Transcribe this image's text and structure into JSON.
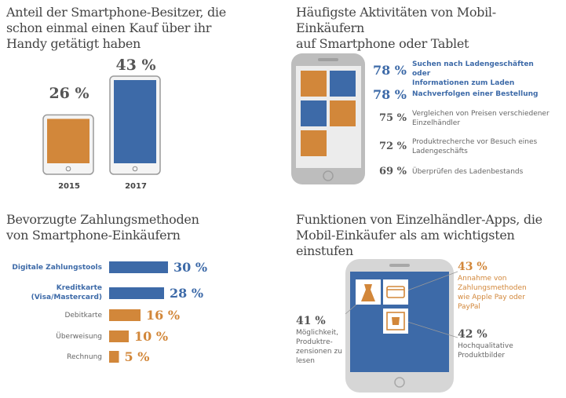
{
  "colors": {
    "blue": "#3d6aa8",
    "orange": "#d2873a",
    "device_frame": "#bdbdbd",
    "device_screen": "#ececec",
    "text_dark": "#444444",
    "text_gray": "#666666"
  },
  "chart_data": [
    {
      "type": "bar",
      "title": "Anteil der Smartphone-Besitzer, die schon einmal einen Kauf über ihr Handy getätigt haben",
      "categories": [
        "2015",
        "2017"
      ],
      "values": [
        26,
        43
      ],
      "value_labels": [
        "26 %",
        "43 %"
      ],
      "colors": [
        "#d2873a",
        "#3d6aa8"
      ],
      "ylim": [
        0,
        43
      ]
    },
    {
      "type": "table",
      "title": "Häufigste Aktivitäten von Mobil-Einkäufern auf Smartphone oder Tablet",
      "rows": [
        {
          "value": 78,
          "value_label": "78 %",
          "label": "Suchen nach Ladengeschäften oder Informationen zum Laden",
          "highlight": true
        },
        {
          "value": 78,
          "value_label": "78 %",
          "label": "Nachverfolgen einer Bestellung",
          "highlight": true
        },
        {
          "value": 75,
          "value_label": "75 %",
          "label": "Vergleichen von Preisen verschiedener Einzelhändler",
          "highlight": false
        },
        {
          "value": 72,
          "value_label": "72 %",
          "label": "Produktrecherche vor Besuch eines Ladengeschäfts",
          "highlight": false
        },
        {
          "value": 69,
          "value_label": "69 %",
          "label": "Überprüfen des Ladenbestands",
          "highlight": false
        }
      ],
      "tile_colors": [
        "#d2873a",
        "#3d6aa8",
        "#3d6aa8",
        "#d2873a",
        "#d2873a"
      ]
    },
    {
      "type": "bar",
      "orientation": "horizontal",
      "title": "Bevorzugte Zahlungsmethoden von Smartphone-Einkäufern",
      "categories": [
        "Digitale Zahlungstools",
        "Kreditkarte (Visa/Mastercard)",
        "Debitkarte",
        "Überweisung",
        "Rechnung"
      ],
      "category_lines": [
        [
          "Digitale Zahlungstools"
        ],
        [
          "Kreditkarte",
          "(Visa/Mastercard)"
        ],
        [
          "Debitkarte"
        ],
        [
          "Überweisung"
        ],
        [
          "Rechnung"
        ]
      ],
      "values": [
        30,
        28,
        16,
        10,
        5
      ],
      "value_labels": [
        "30 %",
        "28 %",
        "16 %",
        "10 %",
        "5 %"
      ],
      "colors": [
        "#3d6aa8",
        "#3d6aa8",
        "#d2873a",
        "#d2873a",
        "#d2873a"
      ],
      "ylim": [
        0,
        30
      ]
    },
    {
      "type": "table",
      "title": "Funktionen von Einzelhändler-Apps, die Mobil-Einkäufer als am wichtigsten einstufen",
      "rows": [
        {
          "value": 43,
          "value_label": "43 %",
          "label": "Annahme von Zahlungsmethoden wie Apple Pay oder PayPal",
          "icon": "credit-card-icon"
        },
        {
          "value": 41,
          "value_label": "41 %",
          "label": "Möglichkeit, Produktre-zensionen zu lesen",
          "icon": "dress-icon"
        },
        {
          "value": 42,
          "value_label": "42 %",
          "label": "Hochqualitative Produktbilder",
          "icon": "picture-frame-icon"
        }
      ]
    }
  ],
  "sections": {
    "ownership": {
      "title_lines": [
        "Anteil der Smartphone-Besitzer, die",
        "schon einmal einen Kauf über ihr",
        "Handy getätigt haben"
      ]
    },
    "activities": {
      "title_lines": [
        "Häufigste Aktivitäten von Mobil-Einkäufern",
        "auf Smartphone oder Tablet"
      ],
      "rows": [
        {
          "pct": "78 %",
          "lines": [
            "Suchen nach Ladengeschäften oder",
            "Informationen zum Laden"
          ]
        },
        {
          "pct": "78 %",
          "lines": [
            "Nachverfolgen einer Bestellung"
          ]
        },
        {
          "pct": "75 %",
          "lines": [
            "Vergleichen von Preisen verschiedener",
            "Einzelhändler"
          ]
        },
        {
          "pct": "72 %",
          "lines": [
            "Produktrecherche vor Besuch eines",
            "Ladengeschäfts"
          ]
        },
        {
          "pct": "69 %",
          "lines": [
            "Überprüfen des Ladenbestands"
          ]
        }
      ]
    },
    "payment": {
      "title_lines": [
        "Bevorzugte Zahlungsmethoden",
        "von Smartphone-Einkäufern"
      ]
    },
    "features": {
      "title_lines": [
        "Funktionen von Einzelhändler-Apps, die",
        "Mobil-Einkäufer als am wichtigsten einstufen"
      ],
      "items": [
        {
          "pct": "43 %",
          "lines": [
            "Annahme von",
            "Zahlungsmethoden",
            "wie Apple Pay oder",
            "PayPal"
          ]
        },
        {
          "pct": "41 %",
          "lines": [
            "Möglichkeit,",
            "Produktre-",
            "zensionen zu",
            "lesen"
          ]
        },
        {
          "pct": "42 %",
          "lines": [
            "Hochqualitative",
            "Produktbilder"
          ]
        }
      ]
    }
  }
}
